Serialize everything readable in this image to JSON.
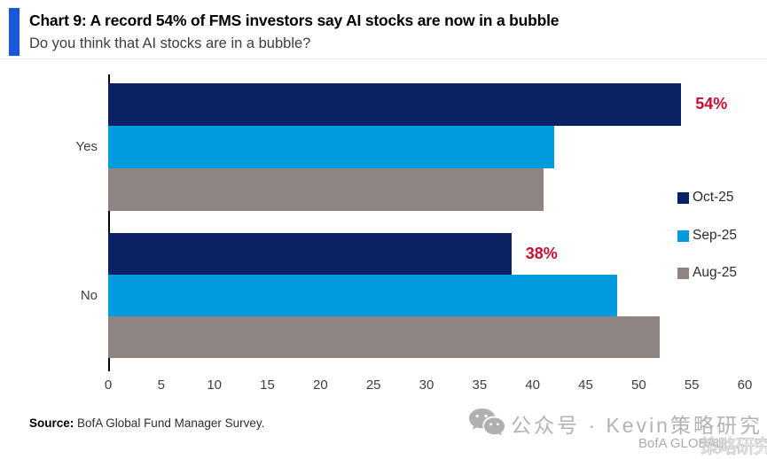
{
  "header": {
    "title": "Chart 9: A record 54% of FMS investors say AI stocks are now in a bubble",
    "subtitle": "Do you think that AI stocks are in a bubble?",
    "accent_color": "#1658D9"
  },
  "chart_data": {
    "type": "bar",
    "orientation": "horizontal",
    "title": "Do you think that AI stocks are in a bubble?",
    "categories": [
      "Yes",
      "No"
    ],
    "series": [
      {
        "name": "Oct-25",
        "color": "#0A2164",
        "values": [
          54,
          38
        ]
      },
      {
        "name": "Sep-25",
        "color": "#009CDE",
        "values": [
          42,
          48
        ]
      },
      {
        "name": "Aug-25",
        "color": "#8E8481",
        "values": [
          41,
          52
        ]
      }
    ],
    "data_labels": [
      {
        "category_index": 0,
        "series_index": 0,
        "text": "54%",
        "color": "#C8102E"
      },
      {
        "category_index": 1,
        "series_index": 0,
        "text": "38%",
        "color": "#C8102E"
      }
    ],
    "xlim": [
      0,
      60
    ],
    "xticks": [
      0,
      5,
      10,
      15,
      20,
      25,
      30,
      35,
      40,
      45,
      50,
      55,
      60
    ],
    "grid": false,
    "legend_position": "right"
  },
  "footer": {
    "source_label": "Source:",
    "source_text": " BofA Global Fund Manager Survey."
  },
  "watermark": {
    "icon": "wechat-icon",
    "text": "公众号 · Kevin策略研究",
    "sub_text": "BofA GLOBAL",
    "stamp_text": "策略研究"
  }
}
